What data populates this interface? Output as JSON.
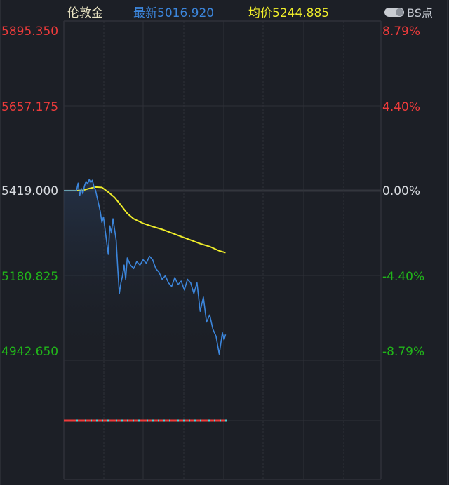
{
  "header": {
    "instrument": "伦敦金",
    "latest_label": "最新5016.920",
    "avg_label": "均价5244.885",
    "bs_toggle_label": "BS点"
  },
  "colors": {
    "background": "#1c1f26",
    "up": "#ee3b3b",
    "down": "#21b51a",
    "price_line": "#3c86dc",
    "avg_line": "#f0ee2a",
    "grid": "#2e3138"
  },
  "axes": {
    "left": [
      {
        "value": "5895.350",
        "tone": "red"
      },
      {
        "value": "5657.175",
        "tone": "red"
      },
      {
        "value": "5419.000",
        "tone": "white"
      },
      {
        "value": "5180.825",
        "tone": "green"
      },
      {
        "value": "4942.650",
        "tone": "green"
      }
    ],
    "right": [
      {
        "value": "8.79%",
        "tone": "red"
      },
      {
        "value": "4.40%",
        "tone": "red"
      },
      {
        "value": "0.00%",
        "tone": "white"
      },
      {
        "value": "-4.40%",
        "tone": "green"
      },
      {
        "value": "-8.79%",
        "tone": "green"
      }
    ]
  },
  "chart_data": {
    "type": "line",
    "title": "伦敦金",
    "subtitle": "最新5016.920 均价5244.885",
    "xlabel": "",
    "ylabel": "",
    "ylim": [
      4942.65,
      5895.35
    ],
    "reference_price": 5419.0,
    "grid": true,
    "legend_position": "top",
    "y_ticks_left": [
      5895.35,
      5657.175,
      5419.0,
      5180.825,
      4942.65
    ],
    "y_ticks_right_pct": [
      8.79,
      4.4,
      0.0,
      -4.4,
      -8.79
    ],
    "series": [
      {
        "name": "最新 (price)",
        "color": "#3c86dc",
        "x_fraction": [
          0.0,
          0.04,
          0.045,
          0.05,
          0.055,
          0.06,
          0.065,
          0.07,
          0.075,
          0.08,
          0.085,
          0.09,
          0.095,
          0.1,
          0.105,
          0.11,
          0.115,
          0.12,
          0.125,
          0.13,
          0.135,
          0.14,
          0.145,
          0.15,
          0.155,
          0.16,
          0.165,
          0.17,
          0.175,
          0.18,
          0.185,
          0.19,
          0.195,
          0.2,
          0.21,
          0.22,
          0.23,
          0.24,
          0.25,
          0.26,
          0.27,
          0.28,
          0.29,
          0.3,
          0.31,
          0.32,
          0.33,
          0.34,
          0.35,
          0.36,
          0.37,
          0.38,
          0.39,
          0.4,
          0.41,
          0.42,
          0.43,
          0.44,
          0.45,
          0.46,
          0.47,
          0.48,
          0.49,
          0.5,
          0.505,
          0.51
        ],
        "values": [
          5419,
          5419,
          5440,
          5405,
          5425,
          5410,
          5432,
          5445,
          5438,
          5450,
          5442,
          5448,
          5430,
          5420,
          5400,
          5380,
          5360,
          5330,
          5345,
          5310,
          5275,
          5240,
          5320,
          5300,
          5340,
          5310,
          5280,
          5200,
          5130,
          5160,
          5180,
          5210,
          5170,
          5230,
          5210,
          5200,
          5220,
          5210,
          5225,
          5215,
          5235,
          5225,
          5200,
          5190,
          5170,
          5180,
          5160,
          5150,
          5175,
          5155,
          5165,
          5140,
          5170,
          5160,
          5130,
          5160,
          5080,
          5120,
          5050,
          5070,
          5030,
          5010,
          4960,
          5020,
          5000,
          5015
        ],
        "last": 5016.92
      },
      {
        "name": "均价 (average)",
        "color": "#f0ee2a",
        "x_fraction": [
          0.0,
          0.04,
          0.06,
          0.08,
          0.1,
          0.12,
          0.14,
          0.16,
          0.18,
          0.2,
          0.22,
          0.25,
          0.28,
          0.31,
          0.34,
          0.37,
          0.4,
          0.43,
          0.46,
          0.49,
          0.51
        ],
        "values": [
          5419,
          5419,
          5420,
          5425,
          5429,
          5428,
          5415,
          5400,
          5378,
          5355,
          5340,
          5327,
          5318,
          5310,
          5300,
          5290,
          5280,
          5270,
          5262,
          5250,
          5244.885
        ],
        "last": 5244.885
      }
    ]
  }
}
